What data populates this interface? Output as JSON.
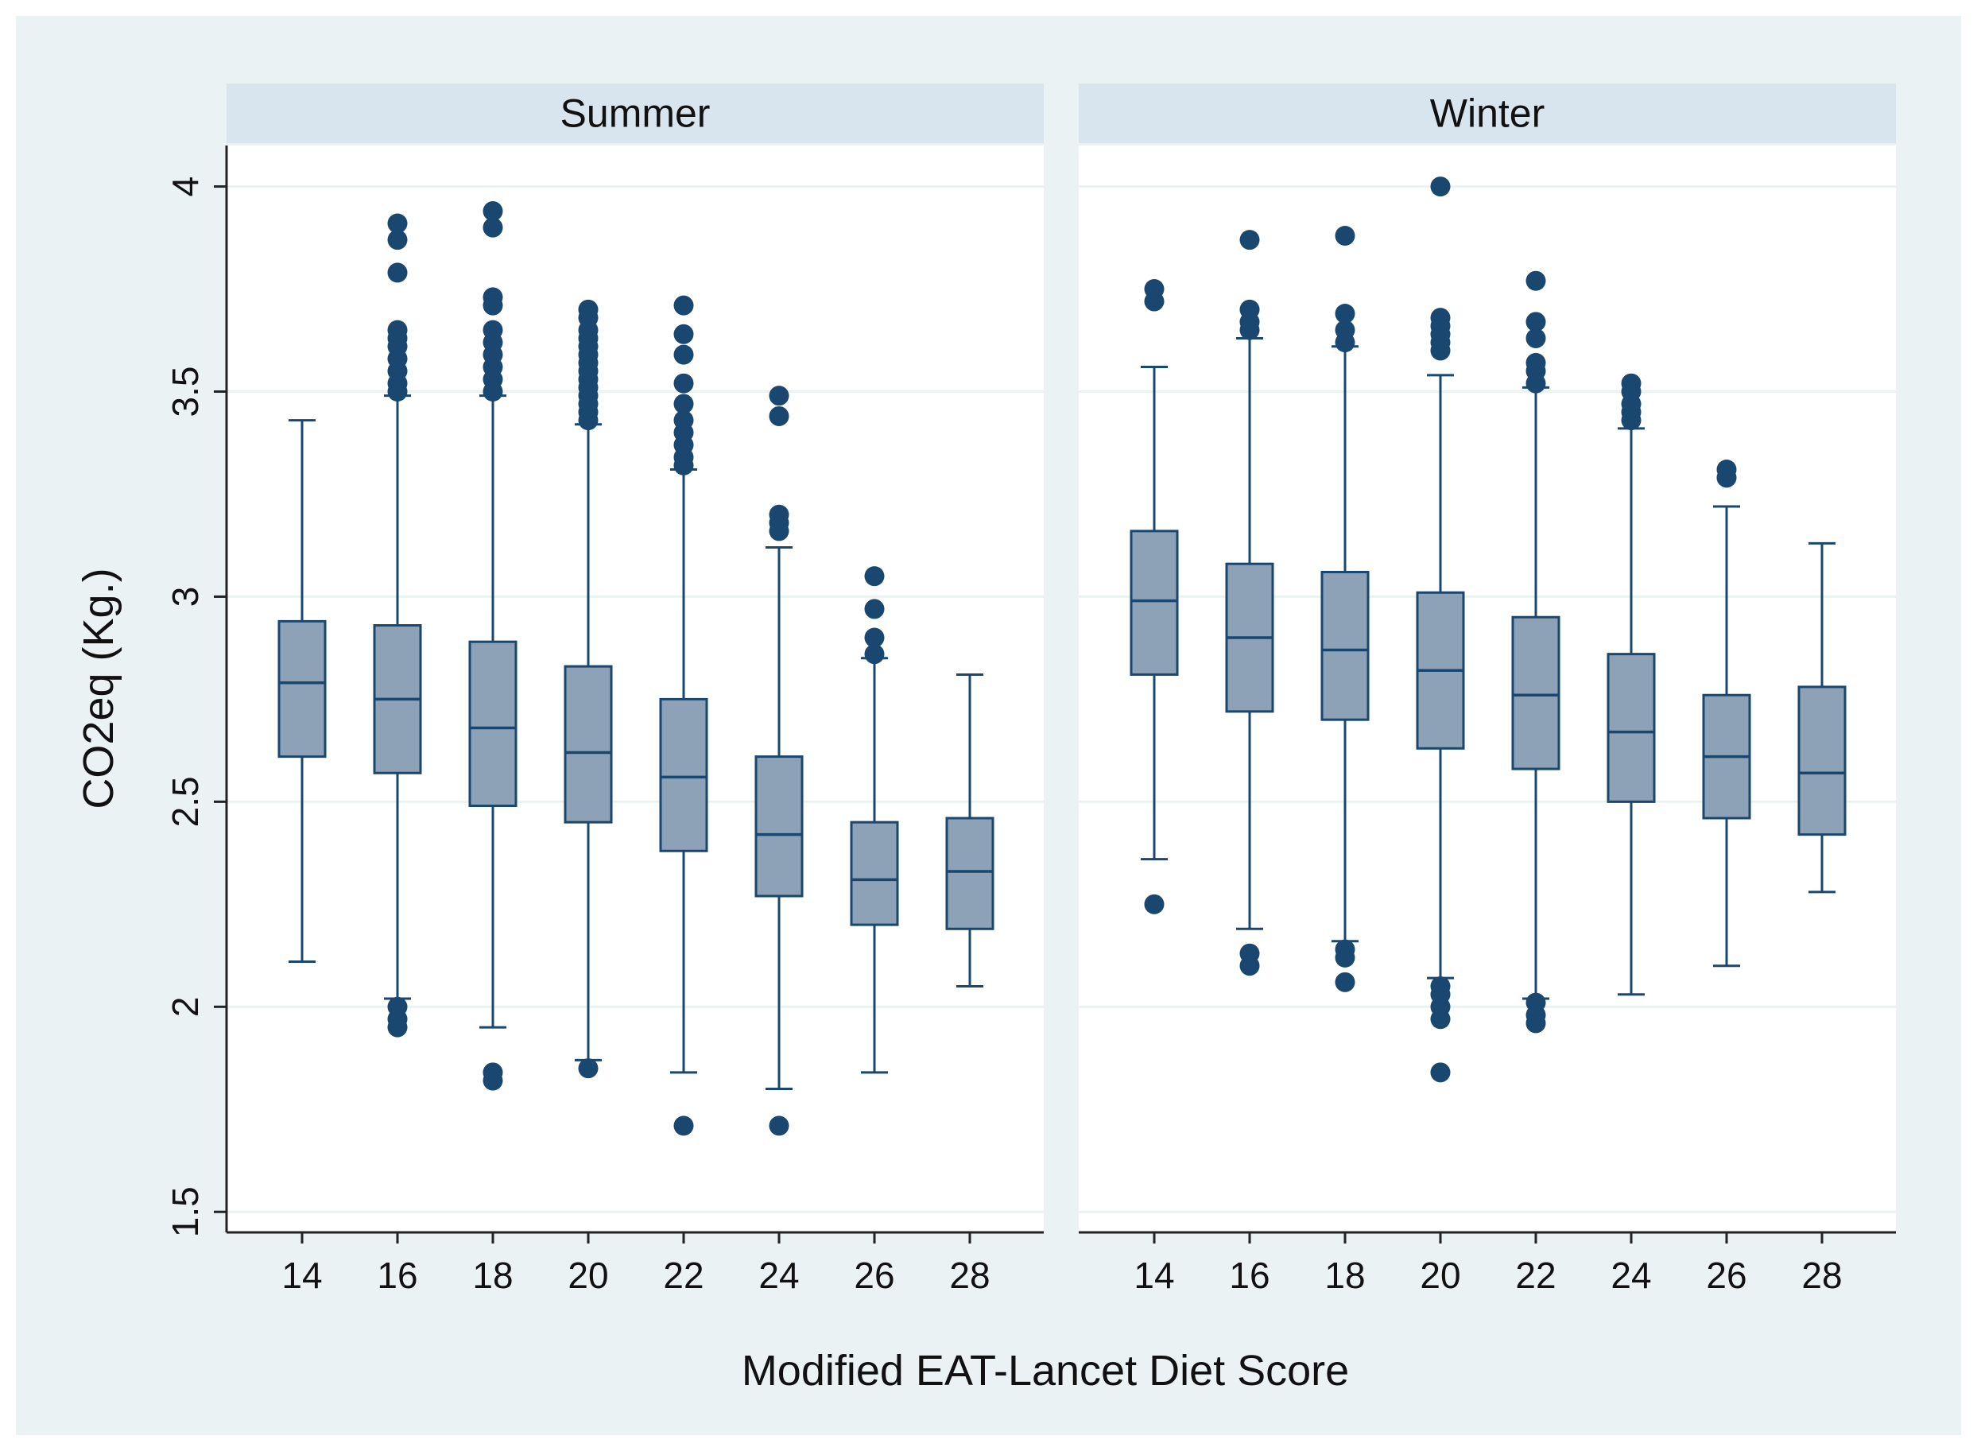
{
  "chart_data": {
    "type": "boxplot",
    "title": "",
    "xlabel": "Modified EAT-Lancet Diet Score",
    "ylabel": "CO2eq (Kg.)",
    "ylim": [
      1.45,
      4.1
    ],
    "yticks": [
      1.5,
      2,
      2.5,
      3,
      3.5,
      4
    ],
    "ytick_labels": [
      "1.5",
      "2",
      "2.5",
      "3",
      "3.5",
      "4"
    ],
    "categories": [
      "14",
      "16",
      "18",
      "20",
      "22",
      "24",
      "26",
      "28"
    ],
    "grid": true,
    "colors": {
      "box_fill": "#8da2b7",
      "box_edge": "#1a476f",
      "outlier": "#1a476f",
      "strip_bg": "#d9e5ee",
      "plot_bg": "#ffffff",
      "outer_bg": "#eaf2f3",
      "grid": "#eaf2f3"
    },
    "panels": [
      {
        "name": "Summer",
        "boxes": [
          {
            "category": "14",
            "whisker_low": 2.11,
            "q1": 2.61,
            "median": 2.79,
            "q3": 2.94,
            "whisker_high": 3.43,
            "outliers": []
          },
          {
            "category": "16",
            "whisker_low": 2.02,
            "q1": 2.57,
            "median": 2.75,
            "q3": 2.93,
            "whisker_high": 3.49,
            "outliers": [
              1.95,
              1.97,
              2.0,
              3.5,
              3.52,
              3.55,
              3.58,
              3.61,
              3.63,
              3.65,
              3.79,
              3.87,
              3.91
            ]
          },
          {
            "category": "18",
            "whisker_low": 1.95,
            "q1": 2.49,
            "median": 2.68,
            "q3": 2.89,
            "whisker_high": 3.49,
            "outliers": [
              1.82,
              1.84,
              3.5,
              3.53,
              3.56,
              3.59,
              3.62,
              3.65,
              3.71,
              3.73,
              3.9,
              3.94
            ]
          },
          {
            "category": "20",
            "whisker_low": 1.87,
            "q1": 2.45,
            "median": 2.62,
            "q3": 2.83,
            "whisker_high": 3.42,
            "outliers": [
              1.85,
              3.43,
              3.45,
              3.47,
              3.49,
              3.51,
              3.53,
              3.55,
              3.57,
              3.59,
              3.61,
              3.63,
              3.65,
              3.68,
              3.7
            ]
          },
          {
            "category": "22",
            "whisker_low": 1.84,
            "q1": 2.38,
            "median": 2.56,
            "q3": 2.75,
            "whisker_high": 3.31,
            "outliers": [
              1.71,
              3.32,
              3.34,
              3.37,
              3.4,
              3.43,
              3.47,
              3.52,
              3.59,
              3.64,
              3.71
            ]
          },
          {
            "category": "24",
            "whisker_low": 1.8,
            "q1": 2.27,
            "median": 2.42,
            "q3": 2.61,
            "whisker_high": 3.12,
            "outliers": [
              1.71,
              3.16,
              3.18,
              3.2,
              3.44,
              3.49
            ]
          },
          {
            "category": "26",
            "whisker_low": 1.84,
            "q1": 2.2,
            "median": 2.31,
            "q3": 2.45,
            "whisker_high": 2.85,
            "outliers": [
              2.86,
              2.9,
              2.97,
              3.05
            ]
          },
          {
            "category": "28",
            "whisker_low": 2.05,
            "q1": 2.19,
            "median": 2.33,
            "q3": 2.46,
            "whisker_high": 2.81,
            "outliers": []
          }
        ]
      },
      {
        "name": "Winter",
        "boxes": [
          {
            "category": "14",
            "whisker_low": 2.36,
            "q1": 2.81,
            "median": 2.99,
            "q3": 3.16,
            "whisker_high": 3.56,
            "outliers": [
              2.25,
              3.72,
              3.75
            ]
          },
          {
            "category": "16",
            "whisker_low": 2.19,
            "q1": 2.72,
            "median": 2.9,
            "q3": 3.08,
            "whisker_high": 3.63,
            "outliers": [
              2.1,
              2.13,
              3.65,
              3.67,
              3.7,
              3.87
            ]
          },
          {
            "category": "18",
            "whisker_low": 2.16,
            "q1": 2.7,
            "median": 2.87,
            "q3": 3.06,
            "whisker_high": 3.61,
            "outliers": [
              2.06,
              2.12,
              2.14,
              3.62,
              3.65,
              3.69,
              3.88
            ]
          },
          {
            "category": "20",
            "whisker_low": 2.07,
            "q1": 2.63,
            "median": 2.82,
            "q3": 3.01,
            "whisker_high": 3.54,
            "outliers": [
              1.84,
              1.97,
              2.0,
              2.03,
              2.05,
              3.6,
              3.62,
              3.64,
              3.66,
              3.68,
              4.0
            ]
          },
          {
            "category": "22",
            "whisker_low": 2.02,
            "q1": 2.58,
            "median": 2.76,
            "q3": 2.95,
            "whisker_high": 3.51,
            "outliers": [
              1.96,
              1.98,
              2.01,
              3.52,
              3.55,
              3.57,
              3.63,
              3.67,
              3.77
            ]
          },
          {
            "category": "24",
            "whisker_low": 2.03,
            "q1": 2.5,
            "median": 2.67,
            "q3": 2.86,
            "whisker_high": 3.41,
            "outliers": [
              3.43,
              3.45,
              3.47,
              3.5,
              3.52
            ]
          },
          {
            "category": "26",
            "whisker_low": 2.1,
            "q1": 2.46,
            "median": 2.61,
            "q3": 2.76,
            "whisker_high": 3.22,
            "outliers": [
              3.29,
              3.31
            ]
          },
          {
            "category": "28",
            "whisker_low": 2.28,
            "q1": 2.42,
            "median": 2.57,
            "q3": 2.78,
            "whisker_high": 3.13,
            "outliers": []
          }
        ]
      }
    ]
  }
}
